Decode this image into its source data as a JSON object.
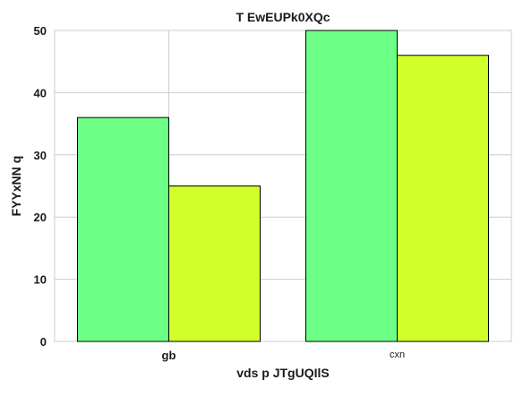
{
  "chart_data": {
    "type": "bar",
    "title": "T EwEUPk0XQc",
    "xlabel": "vds p JTgUQIlS",
    "ylabel": "FYYxNN q",
    "categories": [
      "gb",
      "cxn"
    ],
    "series": [
      {
        "values": [
          36,
          50
        ],
        "color": "#6eff87"
      },
      {
        "values": [
          25,
          46
        ],
        "color": "#d0ff2a"
      }
    ],
    "ylim": [
      0,
      50
    ],
    "yticks": [
      "0",
      "10",
      "20",
      "30",
      "40",
      "50"
    ],
    "grid": true,
    "legend": "none"
  }
}
